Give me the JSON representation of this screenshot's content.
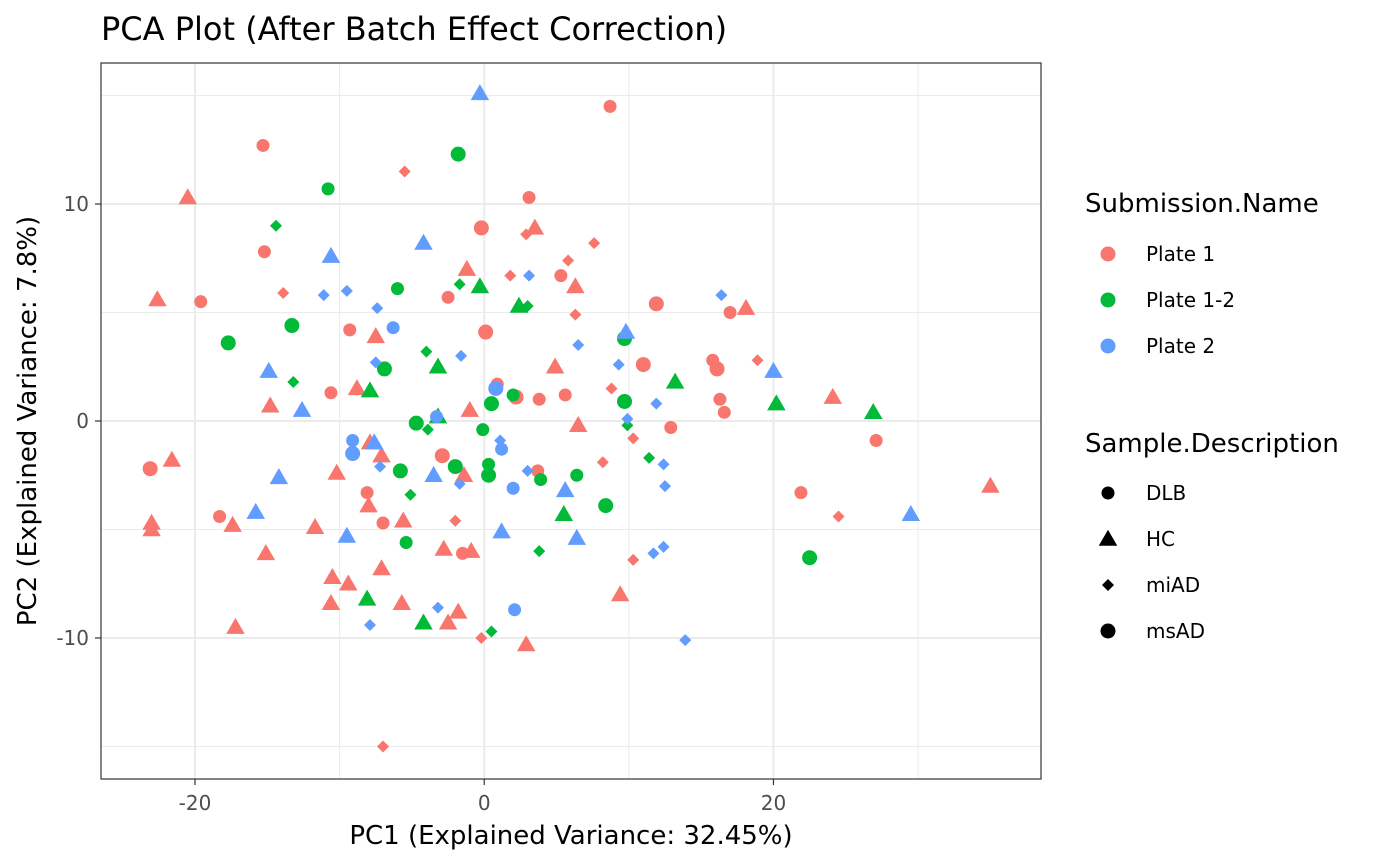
{
  "chart_data": {
    "type": "scatter",
    "title": "PCA Plot (After Batch Effect Correction)",
    "xlabel": "PC1 (Explained Variance: 32.45%)",
    "ylabel": "PC2 (Explained Variance: 7.8%)",
    "xlim": [
      -26.5,
      38.5
    ],
    "ylim": [
      -16.5,
      16.5
    ],
    "xticks": [
      -20,
      0,
      20
    ],
    "yticks": [
      -10,
      0,
      10
    ],
    "grid": true,
    "legend_position": "right",
    "color_legend": {
      "title": "Submission.Name",
      "entries": [
        {
          "label": "Plate 1",
          "color": "#F8766D"
        },
        {
          "label": "Plate 1-2",
          "color": "#00BA38"
        },
        {
          "label": "Plate 2",
          "color": "#619CFF"
        }
      ]
    },
    "shape_legend": {
      "title": "Sample.Description",
      "entries": [
        {
          "label": "DLB",
          "shape": "circle-small"
        },
        {
          "label": "HC",
          "shape": "triangle"
        },
        {
          "label": "miAD",
          "shape": "diamond"
        },
        {
          "label": "msAD",
          "shape": "circle"
        }
      ]
    },
    "series": [
      {
        "name": "Plate 1",
        "shape": "DLB",
        "points": [
          [
            8.7,
            14.5
          ],
          [
            -15.3,
            12.7
          ],
          [
            3.1,
            10.3
          ],
          [
            -15.2,
            7.8
          ],
          [
            -19.6,
            5.5
          ],
          [
            5.3,
            6.7
          ],
          [
            -2.5,
            5.7
          ],
          [
            -9.3,
            4.2
          ],
          [
            17.0,
            5.0
          ],
          [
            -10.6,
            1.3
          ],
          [
            0.9,
            1.7
          ],
          [
            3.8,
            1.0
          ],
          [
            5.6,
            1.2
          ],
          [
            15.8,
            2.8
          ],
          [
            16.3,
            1.0
          ],
          [
            16.6,
            0.4
          ],
          [
            12.9,
            -0.3
          ],
          [
            27.1,
            -0.9
          ],
          [
            -8.1,
            -3.3
          ],
          [
            -18.3,
            -4.4
          ],
          [
            -7.0,
            -4.7
          ],
          [
            -1.5,
            -6.1
          ],
          [
            3.7,
            -2.3
          ],
          [
            21.9,
            -3.3
          ]
        ]
      },
      {
        "name": "Plate 1",
        "shape": "HC",
        "points": [
          [
            -20.5,
            10.3
          ],
          [
            3.5,
            8.9
          ],
          [
            -22.6,
            5.6
          ],
          [
            -1.2,
            7.0
          ],
          [
            6.3,
            6.2
          ],
          [
            18.1,
            5.2
          ],
          [
            -7.5,
            3.9
          ],
          [
            4.9,
            2.5
          ],
          [
            -8.8,
            1.5
          ],
          [
            -14.8,
            0.7
          ],
          [
            -1.0,
            0.5
          ],
          [
            24.1,
            1.1
          ],
          [
            6.5,
            -0.2
          ],
          [
            -7.9,
            -1.0
          ],
          [
            -7.1,
            -1.6
          ],
          [
            -10.2,
            -2.4
          ],
          [
            -1.4,
            -2.5
          ],
          [
            -21.6,
            -1.8
          ],
          [
            -23.0,
            -4.7
          ],
          [
            -23.0,
            -5.0
          ],
          [
            -17.4,
            -4.8
          ],
          [
            -15.1,
            -6.1
          ],
          [
            -11.7,
            -4.9
          ],
          [
            -5.6,
            -4.6
          ],
          [
            -8.0,
            -3.9
          ],
          [
            -2.8,
            -5.9
          ],
          [
            -0.9,
            -6.0
          ],
          [
            -10.5,
            -7.2
          ],
          [
            -9.4,
            -7.5
          ],
          [
            -7.1,
            -6.8
          ],
          [
            -10.6,
            -8.4
          ],
          [
            -5.7,
            -8.4
          ],
          [
            -17.2,
            -9.5
          ],
          [
            -2.5,
            -9.3
          ],
          [
            -1.8,
            -8.8
          ],
          [
            2.9,
            -10.3
          ],
          [
            9.4,
            -8.0
          ],
          [
            35.0,
            -3.0
          ]
        ]
      },
      {
        "name": "Plate 1",
        "shape": "miAD",
        "points": [
          [
            -5.5,
            11.5
          ],
          [
            2.9,
            8.6
          ],
          [
            7.6,
            8.2
          ],
          [
            1.8,
            6.7
          ],
          [
            -13.9,
            5.9
          ],
          [
            5.8,
            7.4
          ],
          [
            6.3,
            4.9
          ],
          [
            18.9,
            2.8
          ],
          [
            8.8,
            1.5
          ],
          [
            10.3,
            -0.8
          ],
          [
            8.2,
            -1.9
          ],
          [
            -2.0,
            -4.6
          ],
          [
            -0.2,
            -10.0
          ],
          [
            -7.0,
            -15.0
          ],
          [
            10.3,
            -6.4
          ],
          [
            24.5,
            -4.4
          ]
        ]
      },
      {
        "name": "Plate 1",
        "shape": "msAD",
        "points": [
          [
            -0.2,
            8.9
          ],
          [
            0.1,
            4.1
          ],
          [
            11.9,
            5.4
          ],
          [
            11.0,
            2.6
          ],
          [
            16.1,
            2.4
          ],
          [
            2.2,
            1.1
          ],
          [
            -2.9,
            -1.6
          ],
          [
            -23.1,
            -2.2
          ]
        ]
      },
      {
        "name": "Plate 1-2",
        "shape": "DLB",
        "points": [
          [
            -10.8,
            10.7
          ],
          [
            -6.0,
            6.1
          ],
          [
            -0.1,
            -0.4
          ],
          [
            2.0,
            1.2
          ],
          [
            0.3,
            -2.0
          ],
          [
            3.9,
            -2.7
          ],
          [
            6.4,
            -2.5
          ],
          [
            -5.4,
            -5.6
          ]
        ]
      },
      {
        "name": "Plate 1-2",
        "shape": "HC",
        "points": [
          [
            -0.3,
            6.2
          ],
          [
            2.4,
            5.3
          ],
          [
            -7.9,
            1.4
          ],
          [
            -3.2,
            2.5
          ],
          [
            -3.2,
            0.2
          ],
          [
            13.2,
            1.8
          ],
          [
            20.2,
            0.8
          ],
          [
            26.9,
            0.4
          ],
          [
            5.5,
            -4.3
          ],
          [
            -8.1,
            -8.2
          ],
          [
            -4.2,
            -9.3
          ]
        ]
      },
      {
        "name": "Plate 1-2",
        "shape": "miAD",
        "points": [
          [
            -14.4,
            9.0
          ],
          [
            -1.7,
            6.3
          ],
          [
            3.0,
            5.3
          ],
          [
            -13.2,
            1.8
          ],
          [
            -4.0,
            3.2
          ],
          [
            -3.9,
            -0.4
          ],
          [
            9.9,
            -0.2
          ],
          [
            11.4,
            -1.7
          ],
          [
            -5.1,
            -3.4
          ],
          [
            3.8,
            -6.0
          ],
          [
            0.5,
            -9.7
          ]
        ]
      },
      {
        "name": "Plate 1-2",
        "shape": "msAD",
        "points": [
          [
            -1.8,
            12.3
          ],
          [
            -13.3,
            4.4
          ],
          [
            -17.7,
            3.6
          ],
          [
            -6.9,
            2.4
          ],
          [
            0.5,
            0.8
          ],
          [
            9.7,
            3.8
          ],
          [
            9.7,
            0.9
          ],
          [
            -2.0,
            -2.1
          ],
          [
            0.3,
            -2.5
          ],
          [
            -5.8,
            -2.3
          ],
          [
            8.4,
            -3.9
          ],
          [
            22.5,
            -6.3
          ],
          [
            -4.7,
            -0.1
          ]
        ]
      },
      {
        "name": "Plate 2",
        "shape": "DLB",
        "points": [
          [
            -6.3,
            4.3
          ],
          [
            -3.3,
            0.2
          ],
          [
            1.2,
            -1.3
          ],
          [
            2.0,
            -3.1
          ],
          [
            -9.1,
            -0.9
          ],
          [
            2.1,
            -8.7
          ]
        ]
      },
      {
        "name": "Plate 2",
        "shape": "HC",
        "points": [
          [
            -0.3,
            15.1
          ],
          [
            -4.2,
            8.2
          ],
          [
            -10.6,
            7.6
          ],
          [
            9.8,
            4.1
          ],
          [
            -14.9,
            2.3
          ],
          [
            20.0,
            2.3
          ],
          [
            -12.6,
            0.5
          ],
          [
            -7.6,
            -1.0
          ],
          [
            -3.5,
            -2.5
          ],
          [
            -14.2,
            -2.6
          ],
          [
            5.6,
            -3.2
          ],
          [
            1.2,
            -5.1
          ],
          [
            6.4,
            -5.4
          ],
          [
            -15.8,
            -4.2
          ],
          [
            -9.5,
            -5.3
          ],
          [
            29.5,
            -4.3
          ]
        ]
      },
      {
        "name": "Plate 2",
        "shape": "miAD",
        "points": [
          [
            -11.1,
            5.8
          ],
          [
            -9.5,
            6.0
          ],
          [
            -7.4,
            5.2
          ],
          [
            3.1,
            6.7
          ],
          [
            16.4,
            5.8
          ],
          [
            -1.6,
            3.0
          ],
          [
            6.5,
            3.5
          ],
          [
            9.3,
            2.6
          ],
          [
            11.9,
            0.8
          ],
          [
            -7.5,
            2.7
          ],
          [
            1.1,
            -0.9
          ],
          [
            -7.2,
            -2.1
          ],
          [
            -1.7,
            -2.9
          ],
          [
            3.0,
            -2.3
          ],
          [
            12.4,
            -2.0
          ],
          [
            12.5,
            -3.0
          ],
          [
            11.7,
            -6.1
          ],
          [
            12.4,
            -5.8
          ],
          [
            -3.2,
            -8.6
          ],
          [
            -7.9,
            -9.4
          ],
          [
            13.9,
            -10.1
          ],
          [
            9.9,
            0.1
          ]
        ]
      },
      {
        "name": "Plate 2",
        "shape": "msAD",
        "points": [
          [
            -9.1,
            -1.5
          ],
          [
            0.8,
            1.5
          ]
        ]
      }
    ]
  }
}
